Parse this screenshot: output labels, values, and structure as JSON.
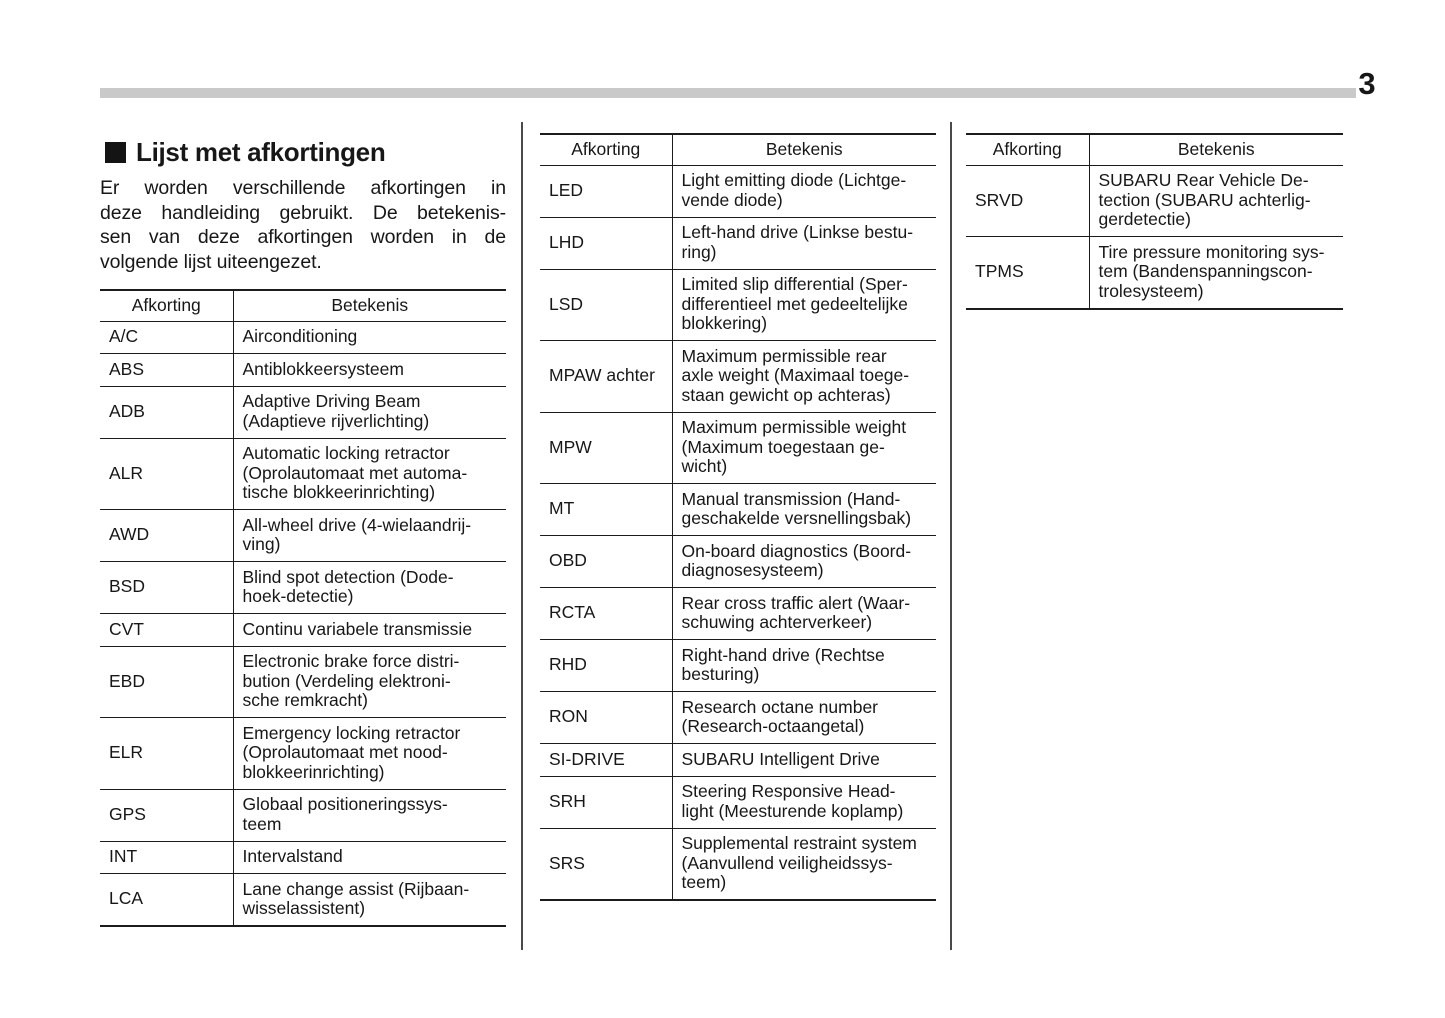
{
  "page_number": "3",
  "colors": {
    "header_rule": "#c9c9c9",
    "text": "#171717"
  },
  "section": {
    "marker": "black-square",
    "title": "Lijst met afkortingen"
  },
  "intro": {
    "lines": [
      "Er worden verschillende afkortingen in",
      "deze handleiding gebruikt. De betekenis-",
      "sen van deze afkortingen worden in de",
      "volgende lijst uiteengezet."
    ]
  },
  "tables": [
    {
      "headers": {
        "abbr": "Afkorting",
        "meaning": "Betekenis"
      },
      "rows": [
        {
          "abbr": "A/C",
          "meaning": "Airconditioning"
        },
        {
          "abbr": "ABS",
          "meaning": "Antiblokkeersysteem"
        },
        {
          "abbr": "ADB",
          "meaning": "Adaptive Driving Beam\n(Adaptieve rijverlichting)"
        },
        {
          "abbr": "ALR",
          "meaning": "Automatic locking retractor\n(Oprolautomaat met automa-\ntische blokkeerinrichting)"
        },
        {
          "abbr": "AWD",
          "meaning": "All-wheel drive (4-wielaandrij-\nving)"
        },
        {
          "abbr": "BSD",
          "meaning": "Blind spot detection (Dode-\nhoek-detectie)"
        },
        {
          "abbr": "CVT",
          "meaning": "Continu variabele transmissie"
        },
        {
          "abbr": "EBD",
          "meaning": "Electronic brake force distri-\nbution (Verdeling elektroni-\nsche remkracht)"
        },
        {
          "abbr": "ELR",
          "meaning": "Emergency locking retractor\n(Oprolautomaat met nood-\nblokkeerinrichting)"
        },
        {
          "abbr": "GPS",
          "meaning": "Globaal positioneringssys-\nteem"
        },
        {
          "abbr": "INT",
          "meaning": "Intervalstand"
        },
        {
          "abbr": "LCA",
          "meaning": "Lane change assist (Rijbaan-\nwisselassistent)"
        }
      ]
    },
    {
      "headers": {
        "abbr": "Afkorting",
        "meaning": "Betekenis"
      },
      "rows": [
        {
          "abbr": "LED",
          "meaning": "Light emitting diode (Lichtge-\nvende diode)"
        },
        {
          "abbr": "LHD",
          "meaning": "Left-hand drive (Linkse bestu-\nring)"
        },
        {
          "abbr": "LSD",
          "meaning": "Limited slip differential (Sper-\ndifferentieel met gedeeltelijke\nblokkering)"
        },
        {
          "abbr": "MPAW achter",
          "meaning": "Maximum permissible rear\naxle weight (Maximaal toege-\nstaan gewicht op achteras)"
        },
        {
          "abbr": "MPW",
          "meaning": "Maximum permissible weight\n(Maximum toegestaan ge-\nwicht)"
        },
        {
          "abbr": "MT",
          "meaning": "Manual transmission (Hand-\ngeschakelde versnellingsbak)"
        },
        {
          "abbr": "OBD",
          "meaning": "On-board diagnostics (Boord-\ndiagnosesysteem)"
        },
        {
          "abbr": "RCTA",
          "meaning": "Rear cross traffic alert (Waar-\nschuwing achterverkeer)"
        },
        {
          "abbr": "RHD",
          "meaning": "Right-hand drive (Rechtse\nbesturing)"
        },
        {
          "abbr": "RON",
          "meaning": "Research octane number\n(Research-octaangetal)"
        },
        {
          "abbr": "SI-DRIVE",
          "meaning": "SUBARU Intelligent Drive"
        },
        {
          "abbr": "SRH",
          "meaning": "Steering Responsive Head-\nlight (Meesturende koplamp)"
        },
        {
          "abbr": "SRS",
          "meaning": "Supplemental restraint system\n(Aanvullend veiligheidssys-\nteem)"
        }
      ]
    },
    {
      "headers": {
        "abbr": "Afkorting",
        "meaning": "Betekenis"
      },
      "rows": [
        {
          "abbr": "SRVD",
          "meaning": "SUBARU Rear Vehicle De-\ntection (SUBARU achterlig-\ngerdetectie)"
        },
        {
          "abbr": "TPMS",
          "meaning": "Tire pressure monitoring sys-\ntem (Bandenspanningscon-\ntrolesysteem)"
        }
      ]
    }
  ]
}
